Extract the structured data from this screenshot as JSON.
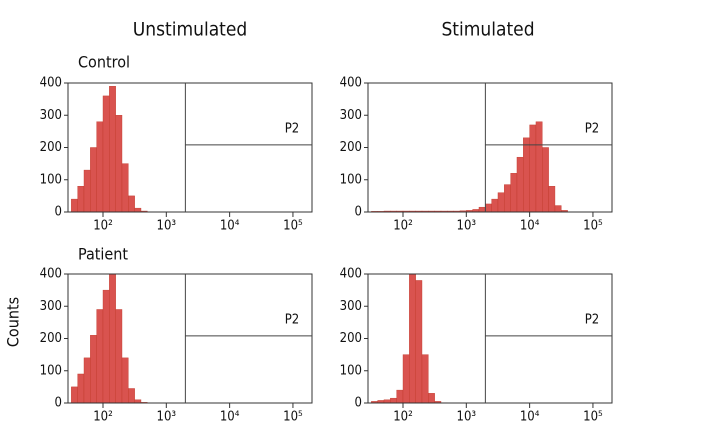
{
  "column_titles": [
    "Unstimulated",
    "Stimulated"
  ],
  "row_labels": [
    "Control",
    "Patient"
  ],
  "y_label": "Counts",
  "chart_data": [
    {
      "type": "histogram",
      "color": "#d9534f",
      "log_x": true,
      "bins": [
        31.6,
        39.8,
        50.1,
        63.1,
        79.4,
        100,
        125.9,
        158.5,
        199.5,
        251.2,
        316.2,
        398.1,
        501.2,
        631,
        794.3,
        1000,
        1258.9,
        1584.9,
        1995.3,
        2511.9,
        3162.3,
        3981.1,
        5011.9,
        6309.6,
        7943.3,
        10000,
        12589,
        15849,
        19953,
        25119,
        31623,
        39811,
        50119,
        63096,
        79433,
        100000,
        125893,
        158489
      ],
      "counts": [
        40,
        80,
        130,
        200,
        280,
        360,
        390,
        300,
        150,
        50,
        12,
        3,
        0,
        0,
        0,
        0,
        0,
        0,
        0,
        0,
        0,
        0,
        0,
        0,
        0,
        0,
        0,
        0,
        0,
        0,
        0,
        0,
        0,
        0,
        0,
        0,
        0
      ],
      "xlim": [
        28,
        200000
      ],
      "ylim": [
        0,
        400
      ],
      "yticks": [
        0,
        100,
        200,
        300,
        400
      ],
      "xticks": [
        {
          "value": 100,
          "label": "10²"
        },
        {
          "value": 1000,
          "label": "10³"
        },
        {
          "value": 10000,
          "label": "10⁴"
        },
        {
          "value": 100000,
          "label": "10⁵"
        }
      ],
      "gate": {
        "label": "P2",
        "x": 2000,
        "y": 208
      }
    },
    {
      "type": "histogram",
      "color": "#d9534f",
      "log_x": true,
      "bins": [
        31.6,
        39.8,
        50.1,
        63.1,
        79.4,
        100,
        125.9,
        158.5,
        199.5,
        251.2,
        316.2,
        398.1,
        501.2,
        631,
        794.3,
        1000,
        1258.9,
        1584.9,
        1995.3,
        2511.9,
        3162.3,
        3981.1,
        5011.9,
        6309.6,
        7943.3,
        10000,
        12589,
        15849,
        19953,
        25119,
        31623,
        39811,
        50119,
        63096,
        79433,
        100000,
        125893,
        158489
      ],
      "counts": [
        2,
        2,
        3,
        3,
        3,
        3,
        3,
        3,
        3,
        3,
        3,
        3,
        3,
        3,
        4,
        5,
        8,
        15,
        25,
        40,
        60,
        85,
        120,
        170,
        230,
        270,
        280,
        200,
        80,
        20,
        5,
        0,
        0,
        0,
        0,
        0,
        0
      ],
      "xlim": [
        28,
        200000
      ],
      "ylim": [
        0,
        400
      ],
      "yticks": [
        0,
        100,
        200,
        300,
        400
      ],
      "xticks": [
        {
          "value": 100,
          "label": "10²"
        },
        {
          "value": 1000,
          "label": "10³"
        },
        {
          "value": 10000,
          "label": "10⁴"
        },
        {
          "value": 100000,
          "label": "10⁵"
        }
      ],
      "gate": {
        "label": "P2",
        "x": 2000,
        "y": 208
      }
    },
    {
      "type": "histogram",
      "color": "#d9534f",
      "log_x": true,
      "bins": [
        31.6,
        39.8,
        50.1,
        63.1,
        79.4,
        100,
        125.9,
        158.5,
        199.5,
        251.2,
        316.2,
        398.1,
        501.2,
        631,
        794.3,
        1000,
        1258.9,
        1584.9,
        1995.3,
        2511.9,
        3162.3,
        3981.1,
        5011.9,
        6309.6,
        7943.3,
        10000,
        12589,
        15849,
        19953,
        25119,
        31623,
        39811,
        50119,
        63096,
        79433,
        100000,
        125893,
        158489
      ],
      "counts": [
        50,
        90,
        140,
        210,
        290,
        350,
        400,
        290,
        140,
        45,
        10,
        2,
        0,
        0,
        0,
        0,
        0,
        0,
        0,
        0,
        0,
        0,
        0,
        0,
        0,
        0,
        0,
        0,
        0,
        0,
        0,
        0,
        0,
        0,
        0,
        0,
        0
      ],
      "xlim": [
        28,
        200000
      ],
      "ylim": [
        0,
        400
      ],
      "yticks": [
        0,
        100,
        200,
        300,
        400
      ],
      "xticks": [
        {
          "value": 100,
          "label": "10²"
        },
        {
          "value": 1000,
          "label": "10³"
        },
        {
          "value": 10000,
          "label": "10⁴"
        },
        {
          "value": 100000,
          "label": "10⁵"
        }
      ],
      "gate": {
        "label": "P2",
        "x": 2000,
        "y": 208
      }
    },
    {
      "type": "histogram",
      "color": "#d9534f",
      "log_x": true,
      "bins": [
        31.6,
        39.8,
        50.1,
        63.1,
        79.4,
        100,
        125.9,
        158.5,
        199.5,
        251.2,
        316.2,
        398.1,
        501.2,
        631,
        794.3,
        1000,
        1258.9,
        1584.9,
        1995.3,
        2511.9,
        3162.3,
        3981.1,
        5011.9,
        6309.6,
        7943.3,
        10000,
        12589,
        15849,
        19953,
        25119,
        31623,
        39811,
        50119,
        63096,
        79433,
        100000,
        125893,
        158489
      ],
      "counts": [
        5,
        8,
        10,
        15,
        40,
        150,
        400,
        380,
        150,
        30,
        5,
        1,
        0,
        0,
        0,
        0,
        0,
        0,
        0,
        0,
        0,
        0,
        0,
        0,
        0,
        0,
        0,
        0,
        0,
        0,
        0,
        0,
        0,
        0,
        0,
        0,
        0
      ],
      "xlim": [
        28,
        200000
      ],
      "ylim": [
        0,
        400
      ],
      "yticks": [
        0,
        100,
        200,
        300,
        400
      ],
      "xticks": [
        {
          "value": 100,
          "label": "10²"
        },
        {
          "value": 1000,
          "label": "10³"
        },
        {
          "value": 10000,
          "label": "10⁴"
        },
        {
          "value": 100000,
          "label": "10⁵"
        }
      ],
      "gate": {
        "label": "P2",
        "x": 2000,
        "y": 208
      }
    }
  ]
}
